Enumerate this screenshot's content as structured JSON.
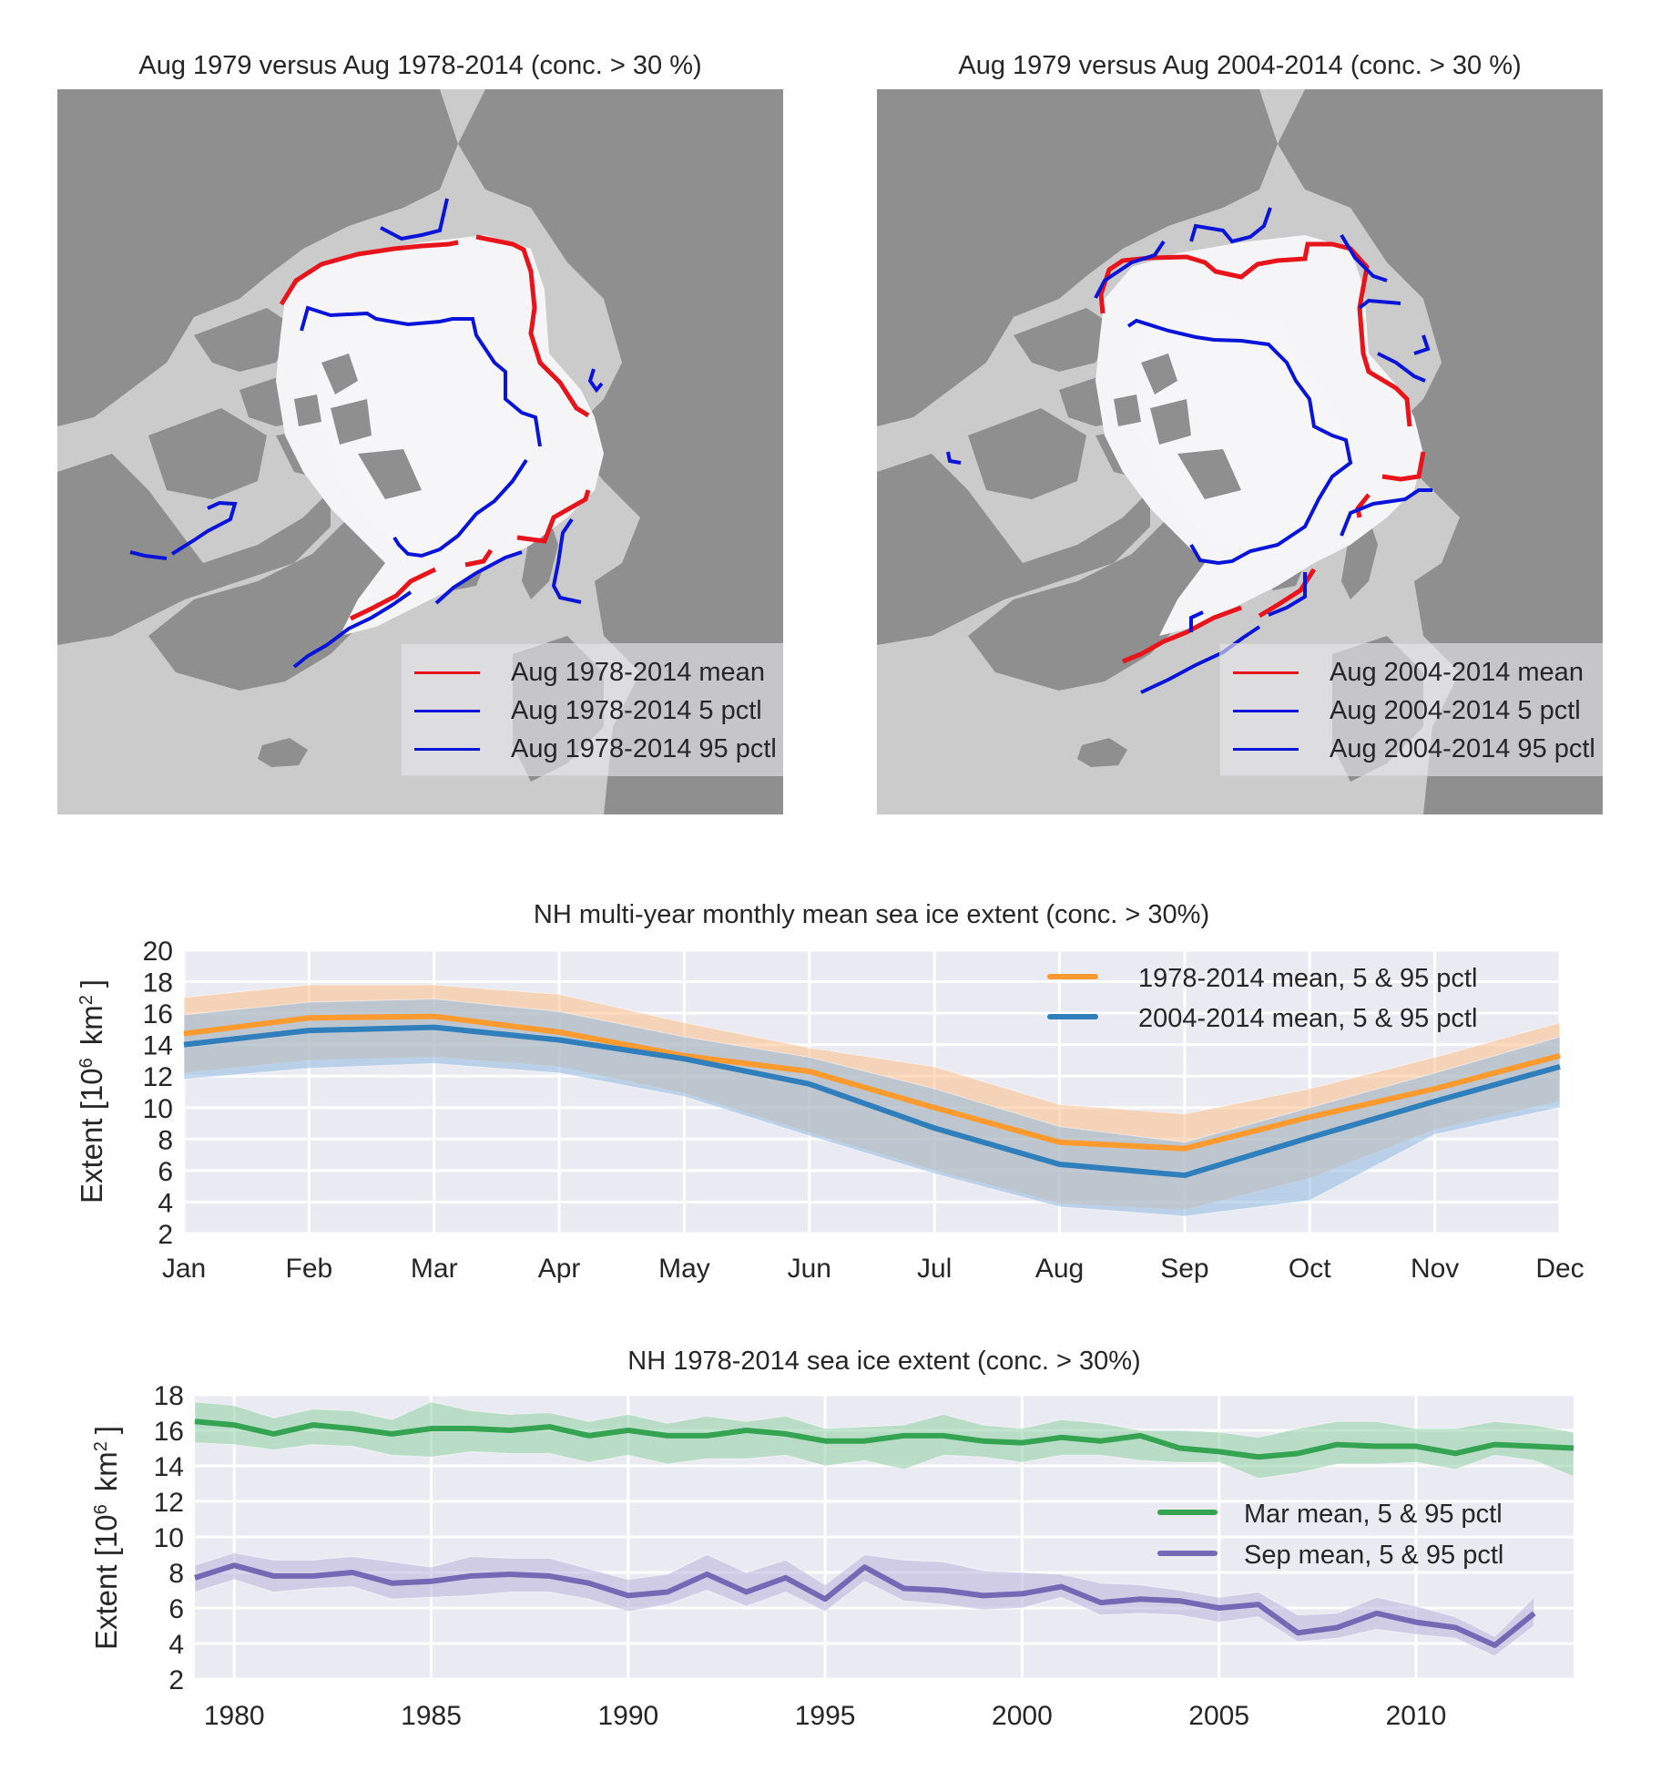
{
  "maps": [
    {
      "title": "Aug 1979 versus Aug 1978-2014 (conc. > 30 %)",
      "legend": [
        {
          "label": "Aug 1978-2014 mean",
          "color": "#e8141b"
        },
        {
          "label": "Aug 1978-2014 5 pctl",
          "color": "#0a14d8"
        },
        {
          "label": "Aug 1978-2014 95 pctl",
          "color": "#0a14d8"
        }
      ]
    },
    {
      "title": "Aug 1979 versus Aug 2004-2014 (conc. > 30 %)",
      "legend": [
        {
          "label": "Aug 2004-2014 mean",
          "color": "#e8141b"
        },
        {
          "label": "Aug 2004-2014 5 pctl",
          "color": "#0a14d8"
        },
        {
          "label": "Aug 2004-2014 95 pctl",
          "color": "#0a14d8"
        }
      ]
    }
  ],
  "map_colors": {
    "land": "#8f8f8f",
    "ocean": "#cbcbcb",
    "ice": "#f5f5f7",
    "ice_edge": "#b9b9b9"
  },
  "chart_data": [
    {
      "type": "line",
      "title": "NH multi-year monthly mean sea ice extent (conc. > 30%)",
      "xlabel": "",
      "ylabel": "Extent [10^6 km^2]",
      "ylabel_parts": {
        "base": "Extent [10",
        "exp1": "6",
        "unit": "km",
        "exp2": "2",
        "close": "]"
      },
      "categories": [
        "Jan",
        "Feb",
        "Mar",
        "Apr",
        "May",
        "Jun",
        "Jul",
        "Aug",
        "Sep",
        "Oct",
        "Nov",
        "Dec"
      ],
      "ylim": [
        2,
        20
      ],
      "yticks": [
        2,
        4,
        6,
        8,
        10,
        12,
        14,
        16,
        18,
        20
      ],
      "grid": true,
      "legend_position": "top-right",
      "series": [
        {
          "name": "1978-2014 mean, 5 & 95 pctl",
          "color": "#ff9a2e",
          "band_color": "#fbc08a",
          "values": [
            14.7,
            15.7,
            15.8,
            14.8,
            13.3,
            12.3,
            10.0,
            7.8,
            7.4,
            9.4,
            11.2,
            13.3
          ],
          "p5": [
            12.2,
            13.0,
            13.2,
            12.6,
            10.9,
            8.4,
            6.0,
            3.9,
            3.5,
            5.5,
            8.6,
            10.4
          ],
          "p95": [
            17.0,
            17.8,
            17.8,
            17.2,
            15.4,
            13.8,
            12.6,
            10.2,
            9.6,
            11.2,
            13.2,
            15.4
          ]
        },
        {
          "name": "2004-2014 mean, 5 & 95 pctl",
          "color": "#2f7fbc",
          "band_color": "#8fb9e0",
          "values": [
            14.0,
            14.9,
            15.1,
            14.3,
            13.1,
            11.5,
            8.7,
            6.4,
            5.7,
            8.1,
            10.4,
            12.6
          ],
          "p5": [
            11.8,
            12.5,
            12.8,
            12.2,
            10.7,
            8.2,
            5.8,
            3.7,
            3.1,
            4.1,
            8.3,
            10.0
          ],
          "p95": [
            15.9,
            16.7,
            16.9,
            16.1,
            14.5,
            13.2,
            11.2,
            8.8,
            7.8,
            10.0,
            12.2,
            14.5
          ]
        }
      ]
    },
    {
      "type": "line",
      "title": "NH 1978-2014 sea ice extent (conc. > 30%)",
      "xlabel": "",
      "ylabel": "Extent [10^6 km^2]",
      "ylabel_parts": {
        "base": "Extent [10",
        "exp1": "6",
        "unit": "km",
        "exp2": "2",
        "close": "]"
      },
      "xlim": [
        1979,
        2014
      ],
      "xticks": [
        1980,
        1985,
        1990,
        1995,
        2000,
        2005,
        2010
      ],
      "ylim": [
        2,
        18
      ],
      "yticks": [
        2,
        4,
        6,
        8,
        10,
        12,
        14,
        16,
        18
      ],
      "grid": true,
      "legend_position": "center-right",
      "series": [
        {
          "name": "Mar mean, 5 & 95 pctl",
          "color": "#34a452",
          "band_color": "#8fd0a4",
          "x_start": 1979,
          "values": [
            16.5,
            16.3,
            15.8,
            16.3,
            16.1,
            15.8,
            16.1,
            16.1,
            16.0,
            16.2,
            15.7,
            16.0,
            15.7,
            15.7,
            16.0,
            15.8,
            15.4,
            15.4,
            15.7,
            15.7,
            15.4,
            15.3,
            15.6,
            15.4,
            15.7,
            15.0,
            14.8,
            14.5,
            14.7,
            15.2,
            15.1,
            15.1,
            14.7,
            15.2,
            15.1,
            15.0
          ],
          "p5": [
            15.3,
            15.2,
            14.9,
            15.2,
            15.1,
            14.6,
            14.5,
            14.8,
            14.7,
            14.7,
            14.2,
            14.6,
            14.1,
            14.4,
            14.4,
            14.6,
            14.0,
            14.3,
            13.8,
            14.6,
            14.5,
            14.2,
            14.6,
            14.6,
            14.3,
            14.2,
            14.2,
            13.3,
            13.6,
            14.1,
            14.1,
            14.2,
            13.8,
            14.6,
            14.3,
            13.4
          ],
          "p95": [
            17.6,
            17.4,
            16.7,
            17.2,
            17.1,
            16.6,
            17.6,
            17.1,
            16.9,
            17.0,
            16.5,
            16.9,
            16.4,
            16.8,
            16.5,
            16.8,
            16.1,
            16.2,
            16.3,
            16.9,
            16.3,
            16.1,
            16.6,
            16.4,
            16.0,
            16.0,
            15.9,
            15.6,
            16.1,
            16.5,
            16.5,
            16.1,
            16.1,
            16.5,
            16.3,
            15.9
          ]
        },
        {
          "name": "Sep mean, 5 & 95 pctl",
          "color": "#7568b4",
          "band_color": "#b9b3dc",
          "x_start": 1979,
          "values": [
            7.7,
            8.4,
            7.8,
            7.8,
            8.0,
            7.4,
            7.5,
            7.8,
            7.9,
            7.8,
            7.4,
            6.7,
            6.9,
            7.9,
            6.9,
            7.7,
            6.5,
            8.3,
            7.1,
            7.0,
            6.7,
            6.8,
            7.2,
            6.3,
            6.5,
            6.4,
            6.0,
            6.2,
            4.6,
            4.9,
            5.7,
            5.2,
            4.9,
            3.9,
            5.7
          ],
          "p5": [
            6.9,
            7.6,
            6.9,
            7.1,
            7.2,
            6.5,
            6.6,
            6.7,
            6.9,
            6.9,
            6.5,
            5.8,
            6.2,
            7.0,
            6.1,
            6.9,
            5.8,
            7.5,
            6.4,
            6.2,
            5.9,
            6.0,
            6.6,
            5.6,
            5.7,
            5.6,
            5.2,
            5.5,
            4.1,
            4.3,
            4.8,
            4.5,
            4.3,
            3.3,
            5.0
          ],
          "p95": [
            8.4,
            9.1,
            8.7,
            8.7,
            8.9,
            8.6,
            8.3,
            8.9,
            8.8,
            8.8,
            8.2,
            7.6,
            7.9,
            9.0,
            8.0,
            8.7,
            7.3,
            9.0,
            8.7,
            8.6,
            8.1,
            8.0,
            7.9,
            7.4,
            7.3,
            7.0,
            6.6,
            6.9,
            5.6,
            5.7,
            6.6,
            6.1,
            5.5,
            4.4,
            6.6
          ]
        }
      ]
    }
  ]
}
